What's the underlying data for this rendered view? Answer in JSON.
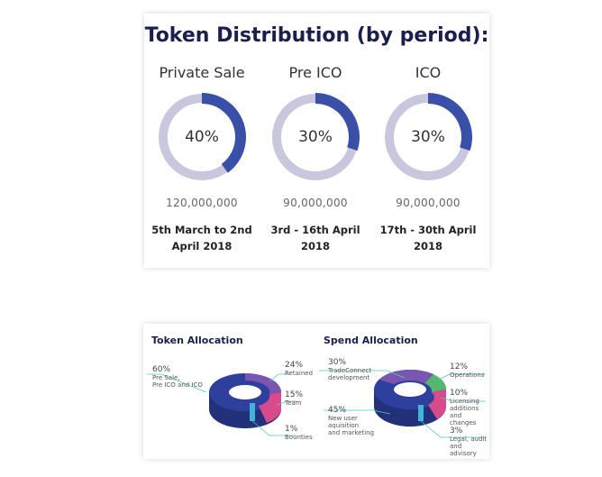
{
  "title": "Token Distribution (by period):",
  "colors": {
    "filled": "#3a4fa8",
    "track": "#c9c7de",
    "accent": "#1a1f4b"
  },
  "periods": [
    {
      "name": "Private Sale",
      "percent_label": "40%",
      "amount": "120,000,000",
      "dates_line1": "5th March to 2nd",
      "dates_line2": "April 2018"
    },
    {
      "name": "Pre ICO",
      "percent_label": "30%",
      "amount": "90,000,000",
      "dates_line1": "3rd - 16th April",
      "dates_line2": "2018"
    },
    {
      "name": "ICO",
      "percent_label": "30%",
      "amount": "90,000,000",
      "dates_line1": "17th - 30th April",
      "dates_line2": "2018"
    }
  ],
  "chart_data": [
    {
      "type": "pie",
      "title": "Token Distribution (by period):",
      "categories": [
        "Private Sale",
        "Pre ICO",
        "ICO"
      ],
      "values": [
        40,
        30,
        30
      ]
    },
    {
      "type": "pie",
      "title": "Token Allocation",
      "categories": [
        "Pre Sale, Pre ICO and ICO",
        "Retained",
        "Team",
        "Bounties"
      ],
      "values": [
        60,
        24,
        15,
        1
      ]
    },
    {
      "type": "pie",
      "title": "Spend Allocation",
      "categories": [
        "TradeConnect development",
        "Operations",
        "Licensing additions and changes",
        "Legal, audit and advisory",
        "New user aquisition and marketing"
      ],
      "values": [
        30,
        12,
        10,
        3,
        45
      ]
    }
  ],
  "token_allocation": {
    "title": "Token Allocation",
    "items": [
      {
        "pct": "60%",
        "label1": "Pre Sale,",
        "label2": "Pre ICO and ICO",
        "color": "#2f3f9e"
      },
      {
        "pct": "24%",
        "label1": "Retained",
        "label2": "",
        "color": "#7b56b0"
      },
      {
        "pct": "15%",
        "label1": "Team",
        "label2": "",
        "color": "#d94a8c"
      },
      {
        "pct": "1%",
        "label1": "Bounties",
        "label2": "",
        "color": "#3fb6d6"
      }
    ]
  },
  "spend_allocation": {
    "title": "Spend Allocation",
    "items": [
      {
        "pct": "30%",
        "label1": "TradeConnect",
        "label2": "development",
        "label3": "",
        "color": "#7b56b0"
      },
      {
        "pct": "12%",
        "label1": "Operations",
        "label2": "",
        "label3": "",
        "color": "#55b66e"
      },
      {
        "pct": "10%",
        "label1": "Licensing",
        "label2": "additions",
        "label3": "and changes",
        "color": "#d94a8c"
      },
      {
        "pct": "3%",
        "label1": "Legal, audit",
        "label2": "and advisory",
        "label3": "",
        "color": "#3fb6d6"
      },
      {
        "pct": "45%",
        "label1": "New user",
        "label2": "aquisition",
        "label3": "and marketing",
        "color": "#2f3f9e"
      }
    ]
  }
}
